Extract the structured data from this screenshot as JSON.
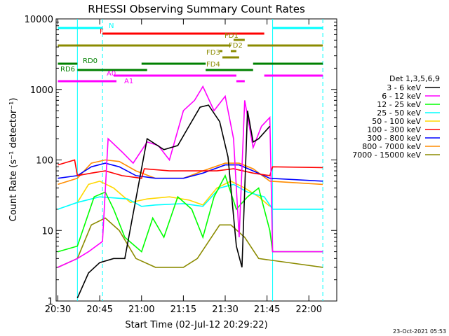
{
  "chart_data": {
    "type": "line",
    "title": "RHESSI Observing Summary Count Rates",
    "xlabel": "Start Time (02-Jul-12 20:29:22)",
    "ylabel": "Count Rate (s⁻¹ detector⁻¹)",
    "y_scale": "log",
    "ylim": [
      1,
      10000
    ],
    "xlim": [
      "20:29:22",
      "22:10:00"
    ],
    "x_ticks": [
      "20:30",
      "20:45",
      "21:00",
      "21:15",
      "21:30",
      "21:45",
      "22:00"
    ],
    "y_ticks": [
      "1",
      "10",
      "100",
      "1000",
      "10000"
    ],
    "footer_date": "23-Oct-2021 05:53",
    "legend": {
      "title": "Det 1,3,5,6,9",
      "placement": "right",
      "entries": [
        {
          "name": "3 - 6 keV",
          "color": "#000000"
        },
        {
          "name": "6 - 12 keV",
          "color": "#ff00ff"
        },
        {
          "name": "12 - 25 keV",
          "color": "#00ff00"
        },
        {
          "name": "25 - 50 keV",
          "color": "#00ffff"
        },
        {
          "name": "50 - 100 keV",
          "color": "#ffd700"
        },
        {
          "name": "100 - 300 keV",
          "color": "#ff0000"
        },
        {
          "name": "300 - 800 keV",
          "color": "#0000ff"
        },
        {
          "name": "800 - 7000 keV",
          "color": "#ff8c00"
        },
        {
          "name": "7000 - 15000 keV",
          "color": "#8b8b00"
        }
      ]
    },
    "vlines": {
      "color": "#00ffff",
      "solid": [
        "20:37",
        "21:47"
      ],
      "dashed": [
        "20:46",
        "22:05"
      ]
    },
    "flags": [
      {
        "label": "N",
        "color": "#00ffff",
        "segments": [
          [
            "20:30",
            "20:46"
          ],
          [
            "21:47",
            "22:05"
          ]
        ]
      },
      {
        "label": "F",
        "color": "#ff0000",
        "segments": [
          [
            "20:46",
            "21:44"
          ]
        ]
      },
      {
        "label": "FD1",
        "color": "#8b8b00",
        "segments": [
          [
            "21:33",
            "21:37"
          ]
        ]
      },
      {
        "label": "FD2",
        "color": "#8b8b00",
        "segments": [
          [
            "20:30",
            "21:32"
          ],
          [
            "21:38",
            "22:05"
          ]
        ]
      },
      {
        "label": "FD3",
        "color": "#8b8b00",
        "segments": [
          [
            "21:28",
            "21:29"
          ],
          [
            "21:32",
            "21:34"
          ]
        ]
      },
      {
        "label": "FD4",
        "color": "#8b8b00",
        "segments": [
          [
            "21:29",
            "21:35"
          ]
        ]
      },
      {
        "label": "RD0",
        "color": "#008000",
        "segments": [
          [
            "20:30",
            "20:37"
          ],
          [
            "21:00",
            "21:23"
          ],
          [
            "21:40",
            "22:05"
          ]
        ]
      },
      {
        "label": "RD6",
        "color": "#008000",
        "segments": [
          [
            "20:37",
            "21:02"
          ],
          [
            "21:23",
            "21:40"
          ]
        ]
      },
      {
        "label": "A0",
        "color": "#ff00ff",
        "segments": [
          [
            "20:50",
            "21:34"
          ],
          [
            "21:44",
            "22:05"
          ]
        ]
      },
      {
        "label": "A1",
        "color": "#ff00ff",
        "segments": [
          [
            "20:30",
            "20:51"
          ],
          [
            "21:34",
            "21:37"
          ]
        ]
      }
    ],
    "series": [
      {
        "name": "3 - 6 keV",
        "color": "#000000",
        "points": [
          [
            "20:37",
            1.1
          ],
          [
            "20:41",
            2.5
          ],
          [
            "20:45",
            3.5
          ],
          [
            "20:50",
            4
          ],
          [
            "20:54",
            4
          ],
          [
            "21:02",
            200
          ],
          [
            "21:08",
            140
          ],
          [
            "21:13",
            160
          ],
          [
            "21:17",
            300
          ],
          [
            "21:21",
            560
          ],
          [
            "21:24",
            600
          ],
          [
            "21:28",
            350
          ],
          [
            "21:31",
            110
          ],
          [
            "21:34",
            6
          ],
          [
            "21:36",
            3
          ],
          [
            "21:38",
            500
          ],
          [
            "21:40",
            180
          ],
          [
            "21:42",
            200
          ],
          [
            "21:46",
            300
          ]
        ]
      },
      {
        "name": "6 - 12 keV",
        "color": "#ff00ff",
        "points": [
          [
            "20:30",
            3
          ],
          [
            "20:37",
            4
          ],
          [
            "20:41",
            5
          ],
          [
            "20:46",
            7
          ],
          [
            "20:48",
            200
          ],
          [
            "20:53",
            130
          ],
          [
            "20:57",
            90
          ],
          [
            "21:02",
            180
          ],
          [
            "21:06",
            160
          ],
          [
            "21:10",
            100
          ],
          [
            "21:15",
            500
          ],
          [
            "21:19",
            700
          ],
          [
            "21:22",
            1100
          ],
          [
            "21:26",
            500
          ],
          [
            "21:30",
            800
          ],
          [
            "21:33",
            200
          ],
          [
            "21:35",
            8
          ],
          [
            "21:37",
            700
          ],
          [
            "21:40",
            150
          ],
          [
            "21:43",
            300
          ],
          [
            "21:46",
            400
          ],
          [
            "21:47",
            5
          ],
          [
            "22:05",
            5
          ]
        ]
      },
      {
        "name": "12 - 25 keV",
        "color": "#00ff00",
        "points": [
          [
            "20:30",
            5
          ],
          [
            "20:37",
            6
          ],
          [
            "20:43",
            30
          ],
          [
            "20:47",
            35
          ],
          [
            "20:50",
            20
          ],
          [
            "20:54",
            8
          ],
          [
            "21:00",
            5
          ],
          [
            "21:04",
            15
          ],
          [
            "21:08",
            8
          ],
          [
            "21:13",
            30
          ],
          [
            "21:18",
            20
          ],
          [
            "21:22",
            8
          ],
          [
            "21:26",
            30
          ],
          [
            "21:30",
            60
          ],
          [
            "21:34",
            20
          ],
          [
            "21:38",
            30
          ],
          [
            "21:42",
            40
          ],
          [
            "21:46",
            10
          ],
          [
            "21:47",
            5
          ],
          [
            "22:05",
            5
          ]
        ]
      },
      {
        "name": "25 - 50 keV",
        "color": "#00ffff",
        "points": [
          [
            "20:30",
            20
          ],
          [
            "20:37",
            25
          ],
          [
            "20:45",
            30
          ],
          [
            "20:55",
            28
          ],
          [
            "21:00",
            22
          ],
          [
            "21:05",
            23
          ],
          [
            "21:15",
            24
          ],
          [
            "21:22",
            22
          ],
          [
            "21:28",
            40
          ],
          [
            "21:33",
            45
          ],
          [
            "21:38",
            35
          ],
          [
            "21:44",
            30
          ],
          [
            "21:47",
            20
          ],
          [
            "22:05",
            20
          ]
        ]
      },
      {
        "name": "50 - 100 keV",
        "color": "#ffd700",
        "points": [
          [
            "20:37",
            25
          ],
          [
            "20:41",
            45
          ],
          [
            "20:45",
            50
          ],
          [
            "20:50",
            40
          ],
          [
            "20:56",
            25
          ],
          [
            "21:02",
            28
          ],
          [
            "21:10",
            30
          ],
          [
            "21:17",
            27
          ],
          [
            "21:22",
            23
          ],
          [
            "21:27",
            40
          ],
          [
            "21:32",
            50
          ],
          [
            "21:37",
            40
          ],
          [
            "21:42",
            30
          ],
          [
            "21:46",
            22
          ]
        ]
      },
      {
        "name": "100 - 300 keV",
        "color": "#ff0000",
        "points": [
          [
            "20:30",
            85
          ],
          [
            "20:36",
            100
          ],
          [
            "20:37",
            60
          ],
          [
            "20:42",
            65
          ],
          [
            "20:47",
            70
          ],
          [
            "20:53",
            60
          ],
          [
            "21:00",
            55
          ],
          [
            "21:01",
            75
          ],
          [
            "21:10",
            70
          ],
          [
            "21:20",
            70
          ],
          [
            "21:27",
            70
          ],
          [
            "21:33",
            75
          ],
          [
            "21:40",
            65
          ],
          [
            "21:46",
            60
          ],
          [
            "21:47",
            80
          ],
          [
            "22:05",
            78
          ]
        ]
      },
      {
        "name": "300 - 800 keV",
        "color": "#0000ff",
        "points": [
          [
            "20:30",
            55
          ],
          [
            "20:37",
            60
          ],
          [
            "20:42",
            80
          ],
          [
            "20:47",
            90
          ],
          [
            "20:52",
            80
          ],
          [
            "20:58",
            60
          ],
          [
            "21:05",
            55
          ],
          [
            "21:15",
            55
          ],
          [
            "21:22",
            65
          ],
          [
            "21:30",
            85
          ],
          [
            "21:35",
            85
          ],
          [
            "21:40",
            70
          ],
          [
            "21:46",
            55
          ],
          [
            "22:05",
            50
          ]
        ]
      },
      {
        "name": "800 - 7000 keV",
        "color": "#ff8c00",
        "points": [
          [
            "20:30",
            45
          ],
          [
            "20:37",
            55
          ],
          [
            "20:42",
            90
          ],
          [
            "20:47",
            100
          ],
          [
            "20:52",
            95
          ],
          [
            "20:58",
            70
          ],
          [
            "21:05",
            55
          ],
          [
            "21:15",
            55
          ],
          [
            "21:22",
            70
          ],
          [
            "21:30",
            90
          ],
          [
            "21:35",
            90
          ],
          [
            "21:40",
            75
          ],
          [
            "21:46",
            50
          ],
          [
            "22:05",
            45
          ]
        ]
      },
      {
        "name": "7000 - 15000 keV",
        "color": "#8b8b00",
        "points": [
          [
            "20:30",
            3
          ],
          [
            "20:37",
            4
          ],
          [
            "20:42",
            12
          ],
          [
            "20:47",
            15
          ],
          [
            "20:52",
            10
          ],
          [
            "20:58",
            4
          ],
          [
            "21:05",
            3
          ],
          [
            "21:15",
            3
          ],
          [
            "21:20",
            4
          ],
          [
            "21:28",
            12
          ],
          [
            "21:32",
            12
          ],
          [
            "21:37",
            8
          ],
          [
            "21:42",
            4
          ],
          [
            "22:05",
            3
          ]
        ]
      }
    ]
  }
}
